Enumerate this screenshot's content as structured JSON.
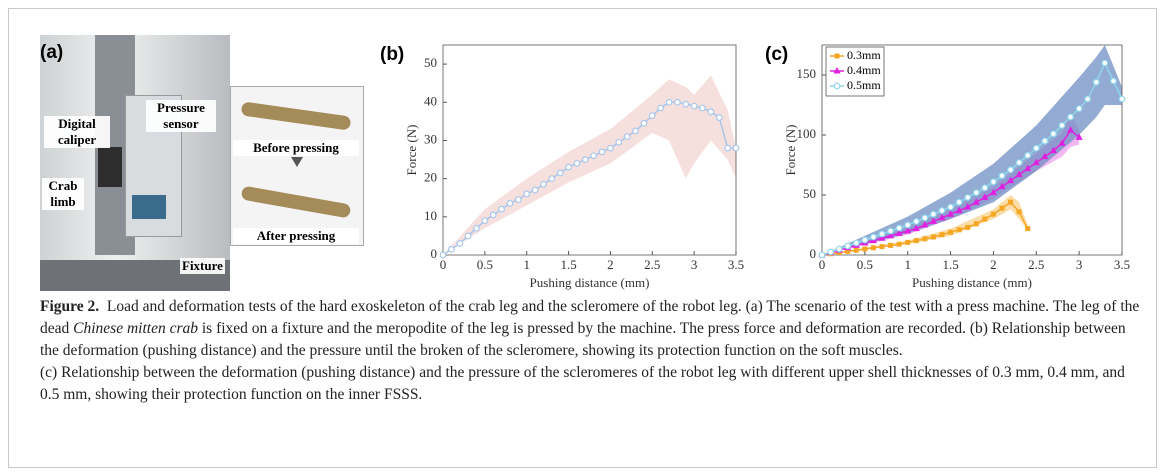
{
  "panel_a": {
    "label": "(a)",
    "labels": [
      "Digital caliper",
      "Pressure sensor",
      "Crab limb",
      "Fixture",
      "Before pressing",
      "After pressing"
    ]
  },
  "chart_data": [
    {
      "type": "line",
      "panel_label": "(b)",
      "x_label": "Pushing distance (mm)",
      "y_label": "Force (N)",
      "xlim": [
        0,
        3.5
      ],
      "ylim": [
        0,
        55
      ],
      "xticks": [
        0,
        0.5,
        1,
        1.5,
        2,
        2.5,
        3,
        3.5
      ],
      "yticks": [
        0,
        10,
        20,
        30,
        40,
        50
      ],
      "color": "#a9c6ea",
      "marker": "circle",
      "band_color": "#f3d6d2",
      "x": [
        0,
        0.1,
        0.2,
        0.3,
        0.4,
        0.5,
        0.6,
        0.7,
        0.8,
        0.9,
        1,
        1.1,
        1.2,
        1.3,
        1.4,
        1.5,
        1.6,
        1.7,
        1.8,
        1.9,
        2,
        2.1,
        2.2,
        2.3,
        2.4,
        2.5,
        2.6,
        2.7,
        2.8,
        2.9,
        3,
        3.1,
        3.2,
        3.3,
        3.4,
        3.5
      ],
      "values": [
        0,
        1.5,
        3,
        5,
        7,
        9,
        10.5,
        12,
        13.5,
        14.5,
        16,
        17,
        18.5,
        20,
        21.5,
        23,
        24,
        25,
        26,
        27,
        28,
        29.5,
        31,
        32.5,
        34.5,
        36.5,
        38.5,
        40,
        40,
        39.5,
        39,
        38.5,
        37.5,
        36,
        28,
        28
      ],
      "band": {
        "x": [
          0,
          0.5,
          1,
          1.5,
          2,
          2.5,
          2.7,
          2.9,
          3,
          3.2,
          3.4,
          3.5
        ],
        "lower": [
          0,
          7,
          13,
          19,
          24,
          32,
          30,
          20,
          24,
          30,
          25,
          20
        ],
        "upper": [
          0,
          12,
          20,
          27,
          33,
          42,
          46,
          44,
          42,
          47,
          38,
          28
        ]
      }
    },
    {
      "type": "line",
      "panel_label": "(c)",
      "x_label": "Pushing distance (mm)",
      "y_label": "Force (N)",
      "xlim": [
        0,
        3.5
      ],
      "ylim": [
        0,
        175
      ],
      "xticks": [
        0,
        0.5,
        1,
        1.5,
        2,
        2.5,
        3,
        3.5
      ],
      "yticks": [
        0,
        50,
        100,
        150
      ],
      "legend": "upper left",
      "series": [
        {
          "name": "0.3mm",
          "color": "#f5a623",
          "marker": "square",
          "band_color": "#f8d28a",
          "x": [
            0,
            0.1,
            0.2,
            0.3,
            0.4,
            0.5,
            0.6,
            0.7,
            0.8,
            0.9,
            1,
            1.1,
            1.2,
            1.3,
            1.4,
            1.5,
            1.6,
            1.7,
            1.8,
            1.9,
            2,
            2.1,
            2.2,
            2.3,
            2.4
          ],
          "values": [
            0,
            1,
            2,
            3,
            4,
            5,
            6,
            7,
            8,
            9,
            10.5,
            12,
            13.5,
            15,
            17,
            19,
            21,
            23,
            26,
            30,
            34,
            39,
            44,
            36,
            22
          ],
          "band": {
            "x": [
              0,
              1,
              1.5,
              2,
              2.2,
              2.3,
              2.4
            ],
            "lower": [
              0,
              9,
              16,
              30,
              38,
              30,
              20
            ],
            "upper": [
              0,
              12,
              22,
              38,
              50,
              44,
              25
            ]
          }
        },
        {
          "name": "0.4mm",
          "color": "#e020e0",
          "marker": "triangle",
          "band_color": "#eea0ee",
          "x": [
            0,
            0.1,
            0.2,
            0.3,
            0.4,
            0.5,
            0.6,
            0.7,
            0.8,
            0.9,
            1,
            1.1,
            1.2,
            1.3,
            1.4,
            1.5,
            1.6,
            1.7,
            1.8,
            1.9,
            2,
            2.1,
            2.2,
            2.3,
            2.4,
            2.5,
            2.6,
            2.7,
            2.8,
            2.9,
            3
          ],
          "values": [
            0,
            2,
            4,
            6,
            8,
            10,
            12,
            14,
            16,
            18,
            20,
            22,
            25,
            28,
            31,
            34,
            37,
            40,
            44,
            48,
            52,
            57,
            62,
            67,
            72,
            77,
            82,
            87,
            93,
            104,
            98
          ],
          "band": {
            "x": [
              0,
              1,
              1.5,
              2,
              2.5,
              2.8,
              2.9,
              3
            ],
            "lower": [
              0,
              17,
              30,
              47,
              70,
              82,
              90,
              92
            ],
            "upper": [
              0,
              23,
              38,
              57,
              85,
              102,
              118,
              104
            ]
          }
        },
        {
          "name": "0.5mm",
          "color": "#8fd6ec",
          "marker": "circle",
          "band_color": "#6f8fc3",
          "x": [
            0,
            0.1,
            0.2,
            0.3,
            0.4,
            0.5,
            0.6,
            0.7,
            0.8,
            0.9,
            1,
            1.1,
            1.2,
            1.3,
            1.4,
            1.5,
            1.6,
            1.7,
            1.8,
            1.9,
            2,
            2.1,
            2.2,
            2.3,
            2.4,
            2.5,
            2.6,
            2.7,
            2.8,
            2.9,
            3,
            3.1,
            3.2,
            3.3,
            3.4,
            3.5
          ],
          "values": [
            0,
            2.5,
            5,
            7.5,
            10,
            12.5,
            15,
            17.5,
            20,
            22.5,
            25,
            28,
            31,
            34,
            37,
            40,
            44,
            48,
            52,
            56,
            61,
            66,
            71,
            77,
            83,
            89,
            95,
            101,
            108,
            115,
            122,
            130,
            144,
            160,
            145,
            130
          ],
          "band": {
            "x": [
              0,
              1,
              1.5,
              2,
              2.5,
              3,
              3.2,
              3.3,
              3.5
            ],
            "lower": [
              0,
              18,
              30,
              44,
              70,
              100,
              115,
              125,
              125
            ],
            "upper": [
              0,
              32,
              52,
              76,
              108,
              148,
              165,
              175,
              140
            ]
          }
        }
      ]
    }
  ],
  "caption": {
    "label": "Figure 2.",
    "segments": [
      "Load and deformation tests of the hard exoskeleton of the crab leg and the scleromere of the robot leg. (a) The scenario of the test with a press machine. The leg of the dead ",
      "Chinese mitten crab",
      " is fixed on a fixture and the meropodite of the leg is pressed by the machine. The press force and deformation are recorded. (b) Relationship between the deformation (pushing distance) and the pressure until the broken of the scleromere, showing its protection function on the soft muscles.",
      "(c) Relationship between the deformation (pushing distance) and the pressure of the scleromeres of the robot leg with different upper shell thicknesses of 0.3 mm, 0.4 mm, and 0.5 mm, showing their protection function on the inner FSSS."
    ]
  }
}
